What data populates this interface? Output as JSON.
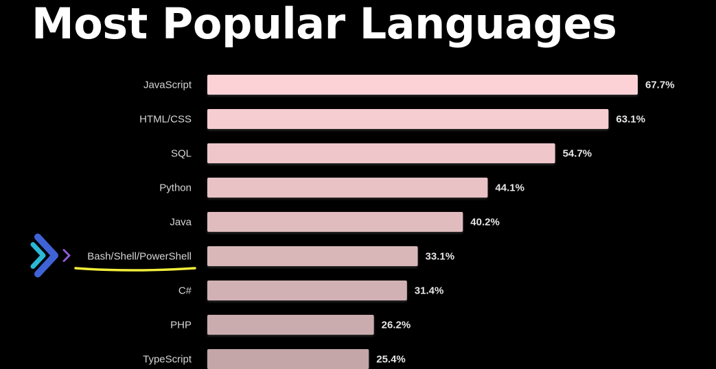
{
  "chart_data": {
    "type": "bar",
    "orientation": "horizontal",
    "title": "Most Popular Languages",
    "categories": [
      "JavaScript",
      "HTML/CSS",
      "SQL",
      "Python",
      "Java",
      "Bash/Shell/PowerShell",
      "C#",
      "PHP",
      "TypeScript"
    ],
    "values": [
      67.7,
      63.1,
      54.7,
      44.1,
      40.2,
      33.1,
      31.4,
      26.2,
      25.4
    ],
    "value_labels": [
      "67.7%",
      "63.1%",
      "54.7%",
      "44.1%",
      "40.2%",
      "33.1%",
      "31.4%",
      "26.2%",
      "25.4%"
    ],
    "xlim": [
      0,
      67.7
    ],
    "grid": false,
    "legend": "none",
    "highlighted_category": "Bash/Shell/PowerShell"
  },
  "colors": {
    "background": "#000000",
    "title": "#ffffff",
    "bar_top": "#fdd2d6",
    "bar_bottom": "#c4a6a8",
    "underline": "#f2ee3a",
    "arrow_blue": "#3f63d6",
    "arrow_cyan": "#2bb7d6",
    "arrow_purple": "#8e5bd6"
  },
  "annotation": {
    "icon": "double-chevron-right-icon",
    "mark": "yellow-underline"
  }
}
